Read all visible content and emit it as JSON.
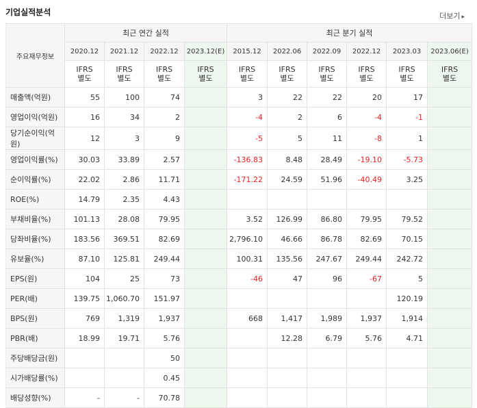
{
  "title": "기업실적분석",
  "more_label": "더보기",
  "more_arrow": "▸",
  "header": {
    "corner": "주요재무정보",
    "annual_group": "최근 연간 실적",
    "quarter_group": "최근 분기 실적",
    "periods": [
      "2020.12",
      "2021.12",
      "2022.12",
      "2023.12(E)",
      "2015.12",
      "2022.06",
      "2022.09",
      "2022.12",
      "2023.03",
      "2023.06(E)"
    ],
    "ifrs": [
      "IFRS\n별도",
      "IFRS\n별도",
      "IFRS\n별도",
      "IFRS\n별도",
      "IFRS\n별도",
      "IFRS\n별도",
      "IFRS\n별도",
      "IFRS\n별도",
      "IFRS\n별도",
      "IFRS\n별도"
    ]
  },
  "rows": [
    {
      "label": "매출액(억원)",
      "values": [
        "55",
        "100",
        "74",
        "",
        "3",
        "22",
        "22",
        "20",
        "17",
        ""
      ]
    },
    {
      "label": "영업이익(억원)",
      "values": [
        "16",
        "34",
        "2",
        "",
        "-4",
        "2",
        "6",
        "-4",
        "-1",
        ""
      ]
    },
    {
      "label": "당기순이익(억원)",
      "values": [
        "12",
        "3",
        "9",
        "",
        "-5",
        "5",
        "11",
        "-8",
        "1",
        ""
      ]
    },
    {
      "label": "영업이익률(%)",
      "values": [
        "30.03",
        "33.89",
        "2.57",
        "",
        "-136.83",
        "8.48",
        "28.49",
        "-19.10",
        "-5.73",
        ""
      ]
    },
    {
      "label": "순이익률(%)",
      "values": [
        "22.02",
        "2.86",
        "11.71",
        "",
        "-171.22",
        "24.59",
        "51.96",
        "-40.49",
        "3.25",
        ""
      ]
    },
    {
      "label": "ROE(%)",
      "values": [
        "14.79",
        "2.35",
        "4.43",
        "",
        "",
        "",
        "",
        "",
        "",
        ""
      ]
    },
    {
      "label": "부채비율(%)",
      "values": [
        "101.13",
        "28.08",
        "79.95",
        "",
        "3.52",
        "126.99",
        "86.80",
        "79.95",
        "79.52",
        ""
      ]
    },
    {
      "label": "당좌비율(%)",
      "values": [
        "183.56",
        "369.51",
        "82.69",
        "",
        "2,796.10",
        "46.66",
        "86.78",
        "82.69",
        "70.15",
        ""
      ]
    },
    {
      "label": "유보율(%)",
      "values": [
        "87.10",
        "125.81",
        "249.44",
        "",
        "100.31",
        "135.56",
        "247.67",
        "249.44",
        "242.72",
        ""
      ]
    },
    {
      "label": "EPS(원)",
      "values": [
        "104",
        "25",
        "73",
        "",
        "-46",
        "47",
        "96",
        "-67",
        "5",
        ""
      ]
    },
    {
      "label": "PER(배)",
      "values": [
        "139.75",
        "1,060.70",
        "151.97",
        "",
        "",
        "",
        "",
        "",
        "120.19",
        ""
      ]
    },
    {
      "label": "BPS(원)",
      "values": [
        "769",
        "1,319",
        "1,937",
        "",
        "668",
        "1,417",
        "1,989",
        "1,937",
        "1,914",
        ""
      ]
    },
    {
      "label": "PBR(배)",
      "values": [
        "18.99",
        "19.71",
        "5.76",
        "",
        "",
        "12.28",
        "6.79",
        "5.76",
        "4.71",
        ""
      ]
    },
    {
      "label": "주당배당금(원)",
      "values": [
        "",
        "",
        "50",
        "",
        "",
        "",
        "",
        "",
        "",
        ""
      ]
    },
    {
      "label": "시가배당률(%)",
      "values": [
        "",
        "",
        "0.45",
        "",
        "",
        "",
        "",
        "",
        "",
        ""
      ]
    },
    {
      "label": "배당성향(%)",
      "values": [
        "-",
        "-",
        "70.78",
        "",
        "",
        "",
        "",
        "",
        "",
        ""
      ]
    }
  ],
  "colors": {
    "negative": "#e8201f",
    "ifrs": "#e8511f",
    "estimate_bg": "#eef7ee",
    "header_bg": "#f6f6f6"
  }
}
